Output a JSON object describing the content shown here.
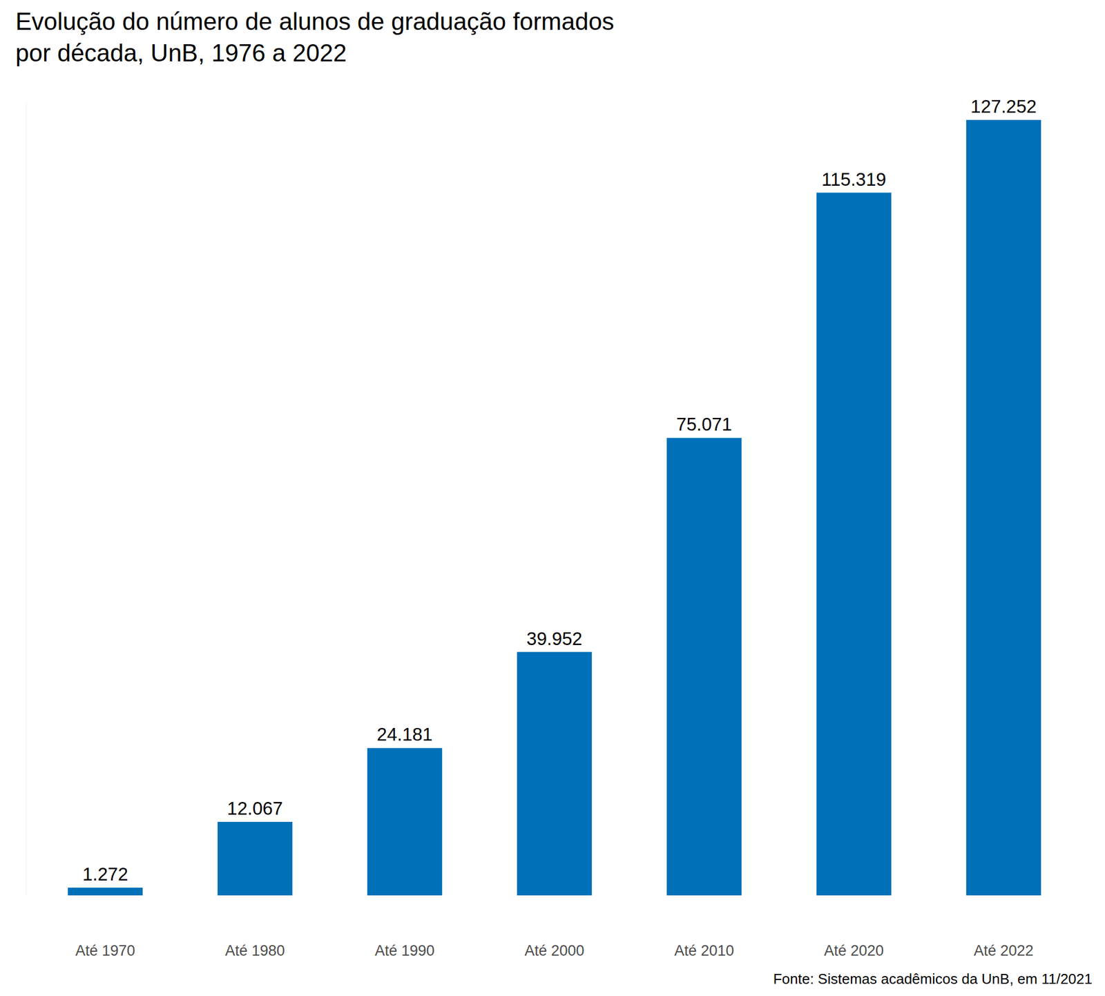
{
  "chart_data": {
    "type": "bar",
    "title": "Evolução do número de alunos de graduação formados\npor década, UnB, 1976 a 2022",
    "categories": [
      "Até 1970",
      "Até 1980",
      "Até 1990",
      "Até 2000",
      "Até 2010",
      "Até 2020",
      "Até 2022"
    ],
    "values": [
      1272,
      12067,
      24181,
      39952,
      75071,
      115319,
      127252
    ],
    "value_labels": [
      "1.272",
      "12.067",
      "24.181",
      "39.952",
      "75.071",
      "115.319",
      "127.252"
    ],
    "color": "#0070b8",
    "ylim": [
      0,
      130000
    ],
    "grid": false,
    "data_labels": true,
    "tick_labels": "x",
    "source": "Fonte: Sistemas acadêmicos da UnB, em 11/2021"
  }
}
